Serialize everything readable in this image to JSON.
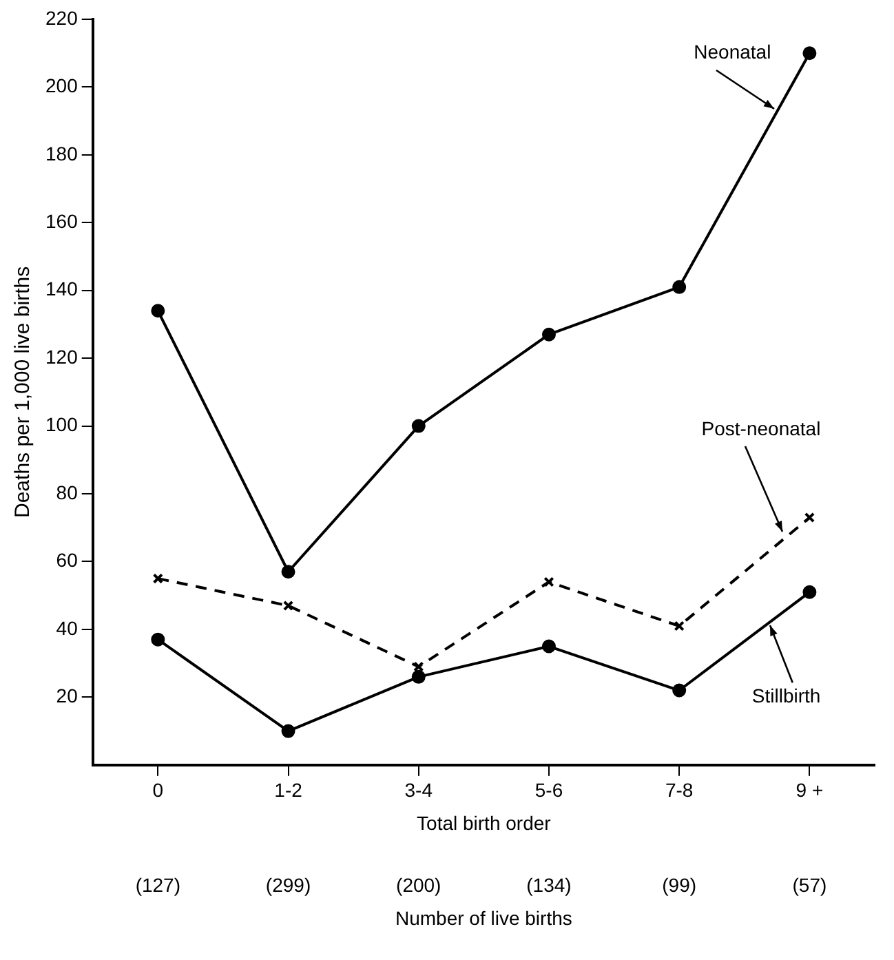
{
  "chart_data": {
    "type": "line",
    "xlabel": "Total birth order",
    "ylabel": "Deaths per 1,000 live births",
    "categories": [
      "0",
      "1-2",
      "3-4",
      "5-6",
      "7-8",
      "9 +"
    ],
    "ylim": [
      0,
      220
    ],
    "yticks": [
      20,
      40,
      60,
      80,
      100,
      120,
      140,
      160,
      180,
      200,
      220
    ],
    "grid": false,
    "legend": false,
    "series": [
      {
        "name": "Neonatal",
        "color": "#000000",
        "marker": "circle",
        "line_style": "solid",
        "values": [
          134,
          57,
          100,
          127,
          141,
          210
        ]
      },
      {
        "name": "Post-neonatal",
        "color": "#000000",
        "marker": "cross",
        "line_style": "dashed",
        "values": [
          55,
          47,
          29,
          54,
          41,
          73
        ]
      },
      {
        "name": "Stillbirth",
        "color": "#000000",
        "marker": "circle",
        "line_style": "solid",
        "values": [
          37,
          10,
          26,
          35,
          22,
          51
        ]
      }
    ],
    "annotations": [
      "(127)",
      "(299)",
      "(200)",
      "(134)",
      "(99)",
      "(57)",
      "Number of live births"
    ]
  }
}
